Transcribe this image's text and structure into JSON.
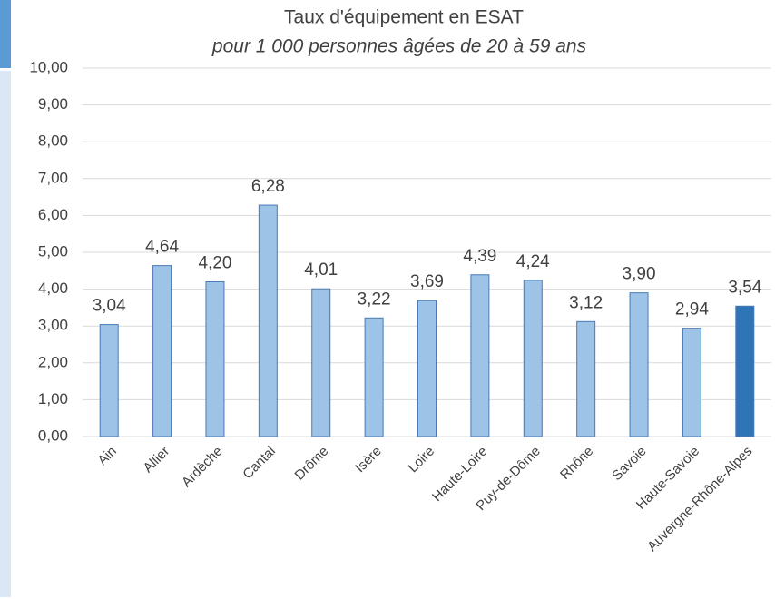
{
  "chart_data": {
    "type": "bar",
    "title": "Taux d'équipement en ESAT",
    "subtitle": "pour 1 000 personnes âgées de 20 à 59 ans",
    "categories": [
      "Ain",
      "Allier",
      "Ardèche",
      "Cantal",
      "Drôme",
      "Isère",
      "Loire",
      "Haute-Loire",
      "Puy-de-Dôme",
      "Rhône",
      "Savoie",
      "Haute-Savoie",
      "Auvergne-Rhône-Alpes"
    ],
    "values": [
      3.04,
      4.64,
      4.2,
      6.28,
      4.01,
      3.22,
      3.69,
      4.39,
      4.24,
      3.12,
      3.9,
      2.94,
      3.54
    ],
    "value_labels": [
      "3,04",
      "4,64",
      "4,20",
      "6,28",
      "4,01",
      "3,22",
      "3,69",
      "4,39",
      "4,24",
      "3,12",
      "3,90",
      "2,94",
      "3,54"
    ],
    "colors": [
      "#9dc3e6",
      "#9dc3e6",
      "#9dc3e6",
      "#9dc3e6",
      "#9dc3e6",
      "#9dc3e6",
      "#9dc3e6",
      "#9dc3e6",
      "#9dc3e6",
      "#9dc3e6",
      "#9dc3e6",
      "#9dc3e6",
      "#2e75b6"
    ],
    "ylim": [
      0,
      10
    ],
    "yticks": [
      {
        "value": 0,
        "label": "0,00"
      },
      {
        "value": 1,
        "label": "1,00"
      },
      {
        "value": 2,
        "label": "2,00"
      },
      {
        "value": 3,
        "label": "3,00"
      },
      {
        "value": 4,
        "label": "4,00"
      },
      {
        "value": 5,
        "label": "5,00"
      },
      {
        "value": 6,
        "label": "6,00"
      },
      {
        "value": 7,
        "label": "7,00"
      },
      {
        "value": 8,
        "label": "8,00"
      },
      {
        "value": 9,
        "label": "9,00"
      },
      {
        "value": 10,
        "label": "10,00"
      }
    ],
    "grid": true
  }
}
